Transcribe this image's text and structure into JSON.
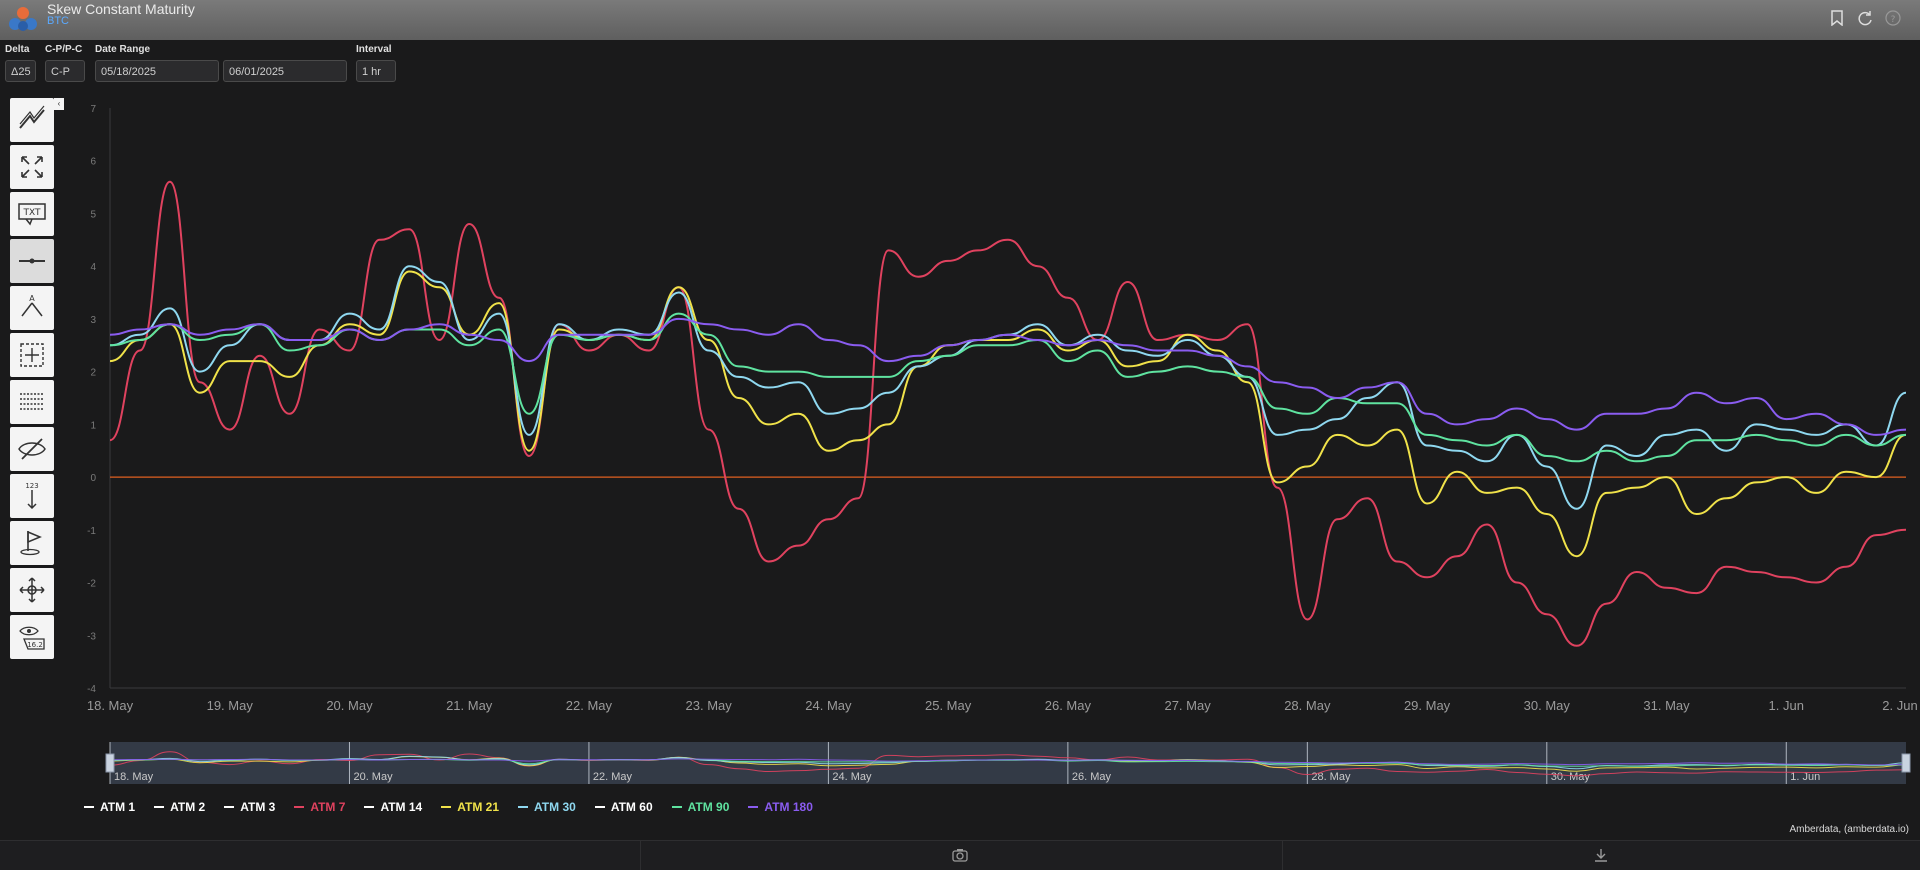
{
  "app": {
    "title": "Skew Constant Maturity",
    "subtitle": "BTC"
  },
  "controls": {
    "delta": {
      "label": "Delta",
      "value": "Δ25"
    },
    "cp": {
      "label": "C-P/P-C",
      "value": "C-P"
    },
    "date_range": {
      "label": "Date Range",
      "start": "05/18/2025",
      "end": "06/01/2025"
    },
    "interval": {
      "label": "Interval",
      "value": "1 hr"
    }
  },
  "toolbar": {
    "tools": [
      {
        "name": "trend-line-tool-icon"
      },
      {
        "name": "expand-tool-icon"
      },
      {
        "name": "text-annotation-tool-icon",
        "text": "TXT"
      },
      {
        "name": "horizontal-line-tool-icon"
      },
      {
        "name": "measure-tool-icon",
        "text": "A"
      },
      {
        "name": "crosshair-zoom-tool-icon"
      },
      {
        "name": "grid-tool-icon"
      },
      {
        "name": "hide-tool-icon"
      },
      {
        "name": "vertical-measure-tool-icon",
        "text": "123"
      },
      {
        "name": "flag-tool-icon"
      },
      {
        "name": "pan-tool-icon"
      },
      {
        "name": "value-eye-tool-icon",
        "text": "16.2"
      }
    ]
  },
  "colors": {
    "red": "#e0425f",
    "yellow": "#f0e24a",
    "cyan": "#8fd8f0",
    "green": "#5fe3a0",
    "purple": "#8a5cf0",
    "zero_line": "#e06020",
    "white": "#ffffff"
  },
  "chart_data": {
    "type": "line",
    "xlabel": "",
    "ylabel": "",
    "ylim": [
      -4,
      7
    ],
    "yticks": [
      -4,
      -3,
      -2,
      -1,
      0,
      1,
      2,
      3,
      4,
      5,
      6,
      7
    ],
    "xticks": [
      "18. May",
      "19. May",
      "20. May",
      "21. May",
      "22. May",
      "23. May",
      "24. May",
      "25. May",
      "26. May",
      "27. May",
      "28. May",
      "29. May",
      "30. May",
      "31. May",
      "1. Jun",
      "2. Jun"
    ],
    "navigator_ticks": [
      "18. May",
      "20. May",
      "22. May",
      "24. May",
      "26. May",
      "28. May",
      "30. May",
      "1. Jun"
    ],
    "x": [
      0,
      0.25,
      0.5,
      0.75,
      1,
      1.25,
      1.5,
      1.75,
      2,
      2.25,
      2.5,
      2.75,
      3,
      3.25,
      3.5,
      3.75,
      4,
      4.25,
      4.5,
      4.75,
      5,
      5.25,
      5.5,
      5.75,
      6,
      6.25,
      6.5,
      6.75,
      7,
      7.25,
      7.5,
      7.75,
      8,
      8.25,
      8.5,
      8.75,
      9,
      9.25,
      9.5,
      9.75,
      10,
      10.25,
      10.5,
      10.75,
      11,
      11.25,
      11.5,
      11.75,
      12,
      12.25,
      12.5,
      12.75,
      13,
      13.25,
      13.5,
      13.75,
      14,
      14.25,
      14.5,
      14.75,
      15
    ],
    "series": [
      {
        "name": "ATM 7",
        "color_key": "red",
        "values": [
          0.7,
          2.4,
          5.6,
          1.8,
          0.9,
          2.3,
          1.2,
          2.8,
          2.4,
          4.5,
          4.7,
          2.6,
          4.8,
          3.4,
          0.4,
          2.9,
          2.4,
          2.7,
          2.4,
          3.6,
          0.9,
          -0.6,
          -1.6,
          -1.3,
          -0.8,
          -0.4,
          4.3,
          3.8,
          4.1,
          4.3,
          4.5,
          4.0,
          3.4,
          2.6,
          3.7,
          2.6,
          2.7,
          2.6,
          2.9,
          -0.2,
          -2.7,
          -0.8,
          -0.4,
          -1.6,
          -1.9,
          -1.5,
          -0.9,
          -2.0,
          -2.6,
          -3.2,
          -2.4,
          -1.8,
          -2.1,
          -2.2,
          -1.7,
          -1.8,
          -1.9,
          -2.0,
          -1.7,
          -1.1,
          -1.0
        ]
      },
      {
        "name": "ATM 21",
        "color_key": "yellow",
        "values": [
          2.2,
          2.6,
          2.9,
          1.6,
          2.2,
          2.2,
          1.9,
          2.5,
          2.9,
          2.7,
          3.9,
          3.6,
          2.7,
          3.3,
          0.5,
          2.8,
          2.6,
          2.7,
          2.6,
          3.6,
          2.6,
          1.5,
          1.0,
          1.2,
          0.5,
          0.7,
          1.0,
          2.1,
          2.5,
          2.6,
          2.6,
          2.8,
          2.4,
          2.6,
          2.1,
          2.2,
          2.7,
          2.4,
          1.8,
          -0.1,
          0.2,
          0.8,
          0.6,
          0.9,
          -0.5,
          0.1,
          -0.3,
          -0.2,
          -0.7,
          -1.5,
          -0.3,
          -0.2,
          0.0,
          -0.7,
          -0.4,
          -0.1,
          0.0,
          -0.3,
          0.1,
          0.0,
          0.8
        ]
      },
      {
        "name": "ATM 30",
        "color_key": "cyan",
        "values": [
          2.5,
          2.7,
          3.2,
          2.0,
          2.5,
          2.9,
          2.6,
          2.6,
          3.1,
          2.8,
          4.0,
          3.7,
          2.6,
          3.1,
          0.8,
          2.9,
          2.6,
          2.8,
          2.7,
          3.5,
          2.4,
          1.9,
          1.7,
          1.8,
          1.2,
          1.3,
          1.6,
          2.1,
          2.3,
          2.6,
          2.7,
          2.9,
          2.5,
          2.7,
          2.4,
          2.3,
          2.6,
          2.3,
          1.9,
          0.8,
          0.9,
          1.1,
          1.5,
          1.8,
          0.6,
          0.5,
          0.3,
          0.8,
          0.2,
          -0.6,
          0.6,
          0.4,
          0.8,
          0.9,
          0.5,
          1.0,
          0.9,
          0.8,
          1.0,
          0.6,
          1.6
        ]
      },
      {
        "name": "ATM 90",
        "color_key": "green",
        "values": [
          2.5,
          2.6,
          2.9,
          2.6,
          2.7,
          2.9,
          2.4,
          2.5,
          2.8,
          2.6,
          2.8,
          2.8,
          2.5,
          2.8,
          1.2,
          2.7,
          2.6,
          2.7,
          2.6,
          3.1,
          2.7,
          2.1,
          2.0,
          2.0,
          1.9,
          1.9,
          1.9,
          2.2,
          2.3,
          2.5,
          2.5,
          2.6,
          2.2,
          2.4,
          1.9,
          2.0,
          2.1,
          2.0,
          1.9,
          1.3,
          1.2,
          1.5,
          1.4,
          1.4,
          0.8,
          0.7,
          0.6,
          0.8,
          0.4,
          0.3,
          0.5,
          0.3,
          0.4,
          0.7,
          0.7,
          0.8,
          0.7,
          0.6,
          0.8,
          0.6,
          0.8
        ]
      },
      {
        "name": "ATM 180",
        "color_key": "purple",
        "values": [
          2.7,
          2.8,
          2.9,
          2.7,
          2.8,
          2.9,
          2.6,
          2.6,
          2.8,
          2.6,
          2.8,
          2.9,
          2.7,
          2.6,
          2.2,
          2.7,
          2.7,
          2.7,
          2.7,
          3.0,
          2.9,
          2.8,
          2.7,
          2.9,
          2.6,
          2.5,
          2.2,
          2.3,
          2.5,
          2.6,
          2.7,
          2.6,
          2.5,
          2.6,
          2.5,
          2.4,
          2.4,
          2.3,
          2.1,
          1.8,
          1.7,
          1.5,
          1.7,
          1.8,
          1.2,
          1.0,
          1.1,
          1.3,
          1.1,
          0.9,
          1.2,
          1.2,
          1.3,
          1.6,
          1.4,
          1.5,
          1.1,
          1.2,
          1.0,
          0.8,
          0.9
        ]
      }
    ]
  },
  "legend": [
    {
      "label": "ATM 1",
      "color": "#ffffff",
      "active": true
    },
    {
      "label": "ATM 2",
      "color": "#ffffff",
      "active": true
    },
    {
      "label": "ATM 3",
      "color": "#ffffff",
      "active": true
    },
    {
      "label": "ATM 7",
      "color": "#e0425f",
      "active": false
    },
    {
      "label": "ATM 14",
      "color": "#ffffff",
      "active": true
    },
    {
      "label": "ATM 21",
      "color": "#f0e24a",
      "active": false
    },
    {
      "label": "ATM 30",
      "color": "#8fd8f0",
      "active": false
    },
    {
      "label": "ATM 60",
      "color": "#ffffff",
      "active": true
    },
    {
      "label": "ATM 90",
      "color": "#5fe3a0",
      "active": false
    },
    {
      "label": "ATM 180",
      "color": "#8a5cf0",
      "active": false
    }
  ],
  "credit": "Amberdata, (amberdata.io)"
}
